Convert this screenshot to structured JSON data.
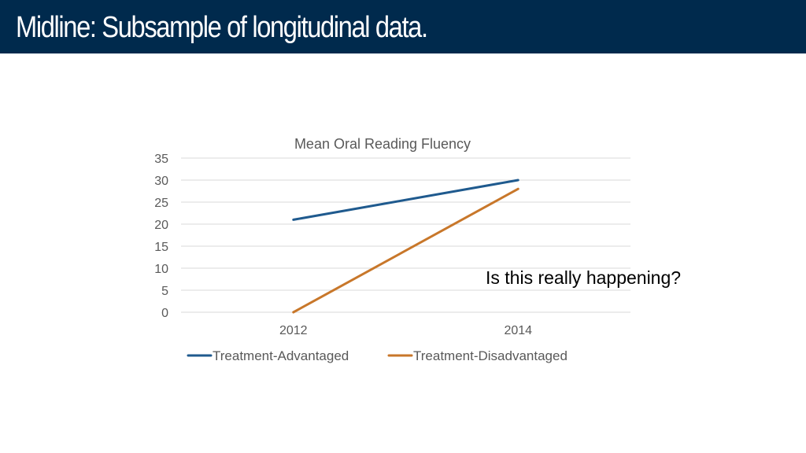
{
  "slide": {
    "title": "Midline: Subsample of longitudinal data.",
    "annotation": "Is this really happening?"
  },
  "colors": {
    "header_bg": "#002a4d",
    "gridline": "#d9d9d9",
    "text": "#595959"
  },
  "chart_data": {
    "type": "line",
    "title": "Mean Oral Reading Fluency",
    "categories": [
      "2012",
      "2014"
    ],
    "y_ticks": [
      "0",
      "5",
      "10",
      "15",
      "20",
      "25",
      "30",
      "35"
    ],
    "ylim": [
      0,
      35
    ],
    "grid": true,
    "legend_position": "bottom",
    "xlabel": "",
    "ylabel": "",
    "series": [
      {
        "name": "Treatment-Advantaged",
        "values": [
          21,
          30
        ],
        "color": "#1f5a8e"
      },
      {
        "name": "Treatment-Disadvantaged",
        "values": [
          0,
          28
        ],
        "color": "#c8772a"
      }
    ]
  }
}
